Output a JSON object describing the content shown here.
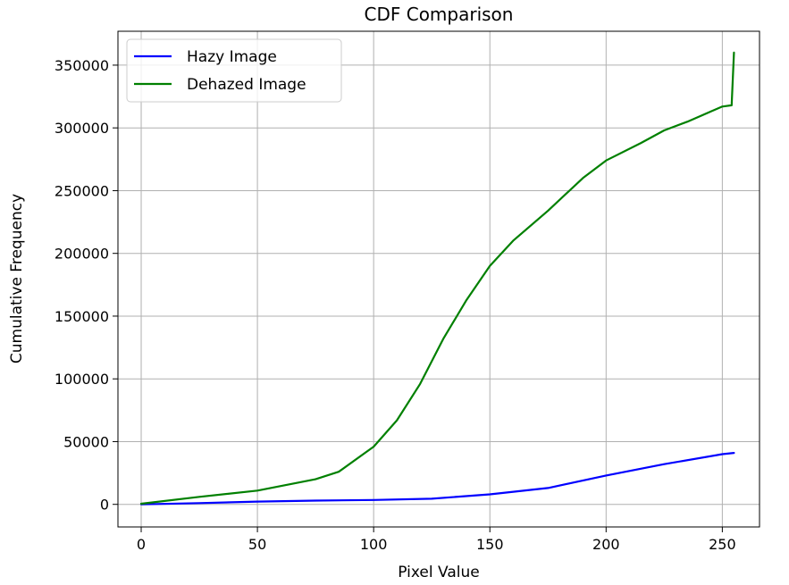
{
  "chart_data": {
    "type": "line",
    "title": "CDF Comparison",
    "xlabel": "Pixel Value",
    "ylabel": "Cumulative Frequency",
    "xlim": [
      -10,
      266
    ],
    "ylim": [
      -18000,
      377000
    ],
    "xticks": [
      0,
      50,
      100,
      150,
      200,
      250
    ],
    "yticks": [
      0,
      50000,
      100000,
      150000,
      200000,
      250000,
      300000,
      350000
    ],
    "grid": true,
    "legend_position": "upper-left",
    "series": [
      {
        "name": "Hazy Image",
        "color": "#0000ff",
        "x": [
          0,
          25,
          50,
          75,
          100,
          125,
          150,
          175,
          185,
          200,
          225,
          250,
          255
        ],
        "y": [
          0,
          1000,
          2200,
          3000,
          3500,
          4500,
          8000,
          13000,
          17000,
          23000,
          32000,
          40000,
          41000
        ]
      },
      {
        "name": "Dehazed Image",
        "color": "#008000",
        "x": [
          0,
          25,
          50,
          75,
          85,
          100,
          110,
          120,
          130,
          140,
          150,
          160,
          175,
          190,
          200,
          215,
          225,
          235,
          245,
          250,
          254,
          255
        ],
        "y": [
          500,
          6000,
          11000,
          20000,
          26000,
          46000,
          67000,
          96000,
          132000,
          163000,
          190000,
          210000,
          234000,
          260000,
          274000,
          288000,
          298000,
          305000,
          313000,
          317000,
          318000,
          360000
        ]
      }
    ]
  }
}
